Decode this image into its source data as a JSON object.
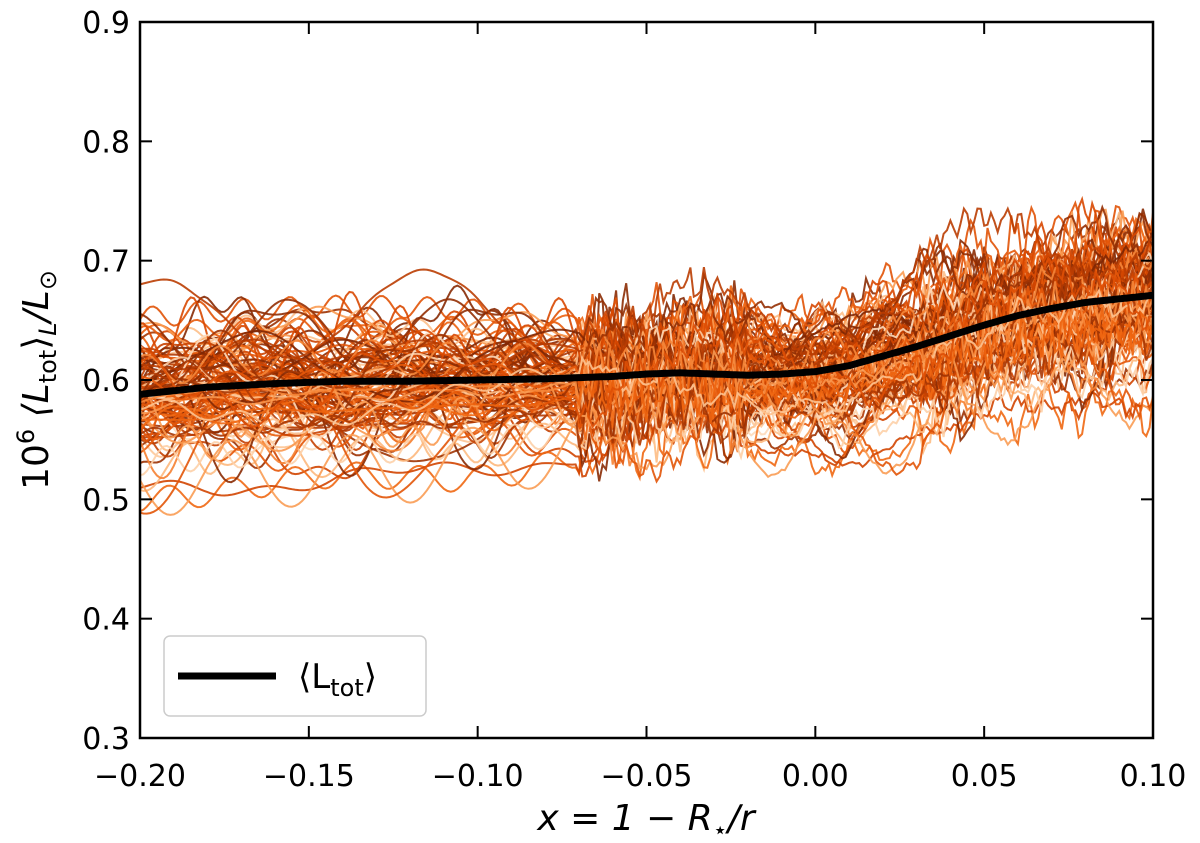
{
  "chart_data": {
    "type": "line",
    "title": "",
    "xlabel": {
      "prefix": "x = 1 − R",
      "sub": "⋆",
      "suffix": "/r"
    },
    "ylabel": {
      "prefix": "10",
      "sup": "6",
      "open": " ⟨L",
      "sub1": "tot",
      "close": "⟩",
      "sub2": "L",
      "slash": "/L",
      "sub3": "⊙"
    },
    "xlim": [
      -0.2,
      0.1
    ],
    "ylim": [
      0.3,
      0.9
    ],
    "xticks": [
      -0.2,
      -0.15,
      -0.1,
      -0.05,
      0.0,
      0.05,
      0.1
    ],
    "xtick_labels": [
      "−0.20",
      "−0.15",
      "−0.10",
      "−0.05",
      "0.00",
      "0.05",
      "0.10"
    ],
    "yticks": [
      0.3,
      0.4,
      0.5,
      0.6,
      0.7,
      0.8,
      0.9
    ],
    "ytick_labels": [
      "0.3",
      "0.4",
      "0.5",
      "0.6",
      "0.7",
      "0.8",
      "0.9"
    ],
    "mean_series": {
      "name": "⟨L_tot⟩",
      "color": "#000000",
      "x": [
        -0.2,
        -0.18,
        -0.16,
        -0.14,
        -0.12,
        -0.1,
        -0.08,
        -0.06,
        -0.05,
        -0.04,
        -0.03,
        -0.02,
        -0.01,
        0.0,
        0.01,
        0.02,
        0.03,
        0.04,
        0.05,
        0.06,
        0.07,
        0.08,
        0.09,
        0.1
      ],
      "y": [
        0.588,
        0.594,
        0.597,
        0.599,
        0.599,
        0.6,
        0.601,
        0.603,
        0.605,
        0.606,
        0.605,
        0.604,
        0.605,
        0.607,
        0.612,
        0.62,
        0.628,
        0.637,
        0.646,
        0.654,
        0.66,
        0.665,
        0.668,
        0.671
      ]
    },
    "ensemble": {
      "description": "individual realizations",
      "count": 120,
      "color_scale": [
        "#fde0c5",
        "#fdae6b",
        "#f16913",
        "#d94801",
        "#a63603",
        "#7f2704"
      ]
    },
    "legend": {
      "position": "lower-left",
      "entries": [
        {
          "label_open": "⟨L",
          "label_sub": "tot",
          "label_close": "⟩",
          "color": "#000000"
        }
      ]
    }
  }
}
